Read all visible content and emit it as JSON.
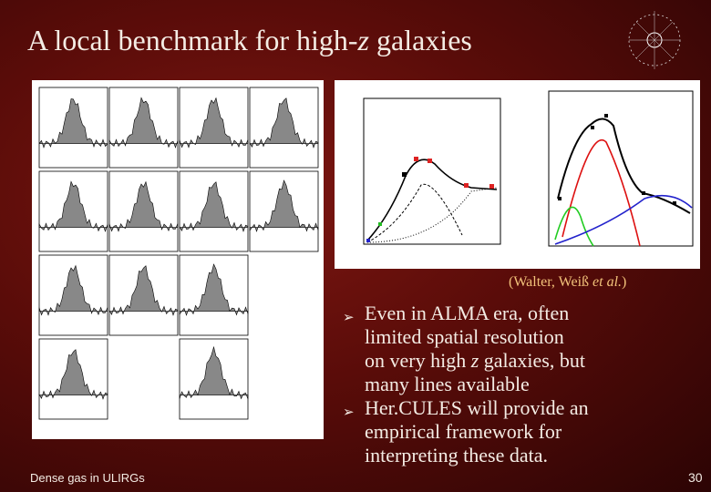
{
  "slide": {
    "title": [
      {
        "text": "A local benchmark for high-",
        "italic": false
      },
      {
        "text": "z",
        "italic": true
      },
      {
        "text": " galaxies",
        "italic": false
      }
    ],
    "caption": [
      {
        "text": "(Walter, Weiß ",
        "italic": false
      },
      {
        "text": "et al.",
        "italic": true
      },
      {
        "text": ")",
        "italic": false
      }
    ],
    "bullets": [
      {
        "lines": [
          [
            {
              "text": "Even in ALMA era, often",
              "italic": false
            }
          ],
          [
            {
              "text": "limited spatial resolution",
              "italic": false
            }
          ],
          [
            {
              "text": "on very high ",
              "italic": false
            },
            {
              "text": "z",
              "italic": true
            },
            {
              "text": " galaxies, but",
              "italic": false
            }
          ],
          [
            {
              "text": "many lines available",
              "italic": false
            }
          ]
        ]
      },
      {
        "lines": [
          [
            {
              "text": "Her.CULES will provide an",
              "italic": false
            }
          ],
          [
            {
              "text": "empirical framework for",
              "italic": false
            }
          ],
          [
            {
              "text": "interpreting these data.",
              "italic": false
            }
          ]
        ]
      }
    ],
    "footer": "Dense gas in ULIRGs",
    "page_number": "30"
  }
}
